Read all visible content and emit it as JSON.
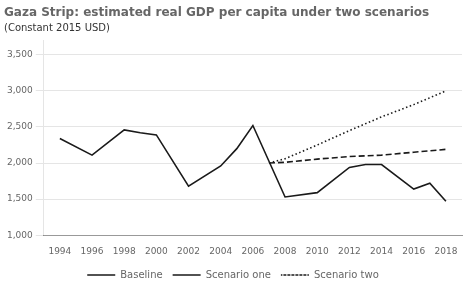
{
  "chart_data": {
    "type": "line",
    "title": "Gaza Strip: estimated real GDP per capita under two scenarios",
    "subtitle": "(Constant 2015 USD)",
    "series": [
      {
        "name": "Baseline",
        "color": "#1a1a1a",
        "line_style": "solid",
        "x": [
          1994,
          1996,
          1998,
          1999,
          2000,
          2002,
          2004,
          2005,
          2006,
          2008,
          2010,
          2012,
          2013,
          2014,
          2016,
          2017,
          2018
        ],
        "values": [
          2340,
          2110,
          2460,
          2420,
          2390,
          1680,
          1960,
          2200,
          2520,
          1530,
          1590,
          1940,
          1980,
          1980,
          1640,
          1720,
          1470
        ]
      },
      {
        "name": "Scenario one",
        "color": "#1a1a1a",
        "line_style": "dashed",
        "x": [
          2007,
          2008,
          2010,
          2012,
          2014,
          2016,
          2018
        ],
        "values": [
          2000,
          2010,
          2055,
          2090,
          2110,
          2150,
          2190
        ]
      },
      {
        "name": "Scenario two",
        "color": "#1a1a1a",
        "line_style": "dotted",
        "x": [
          2007,
          2008,
          2010,
          2012,
          2014,
          2016,
          2018
        ],
        "values": [
          2000,
          2060,
          2250,
          2450,
          2640,
          2810,
          3000
        ]
      }
    ],
    "xlim": [
      1993,
      2019
    ],
    "xticks": [
      1994,
      1996,
      1998,
      2000,
      2002,
      2004,
      2006,
      2008,
      2010,
      2012,
      2014,
      2016,
      2018
    ],
    "ylim": [
      1000,
      3700
    ],
    "yticks": [
      {
        "value": 1000,
        "label": "1,000"
      },
      {
        "value": 1500,
        "label": "1,500"
      },
      {
        "value": 2000,
        "label": "2,000"
      },
      {
        "value": 2500,
        "label": "2,500"
      },
      {
        "value": 3000,
        "label": "3,000"
      },
      {
        "value": 3500,
        "label": "3,500"
      }
    ],
    "grid": true,
    "legend": "bottom"
  }
}
